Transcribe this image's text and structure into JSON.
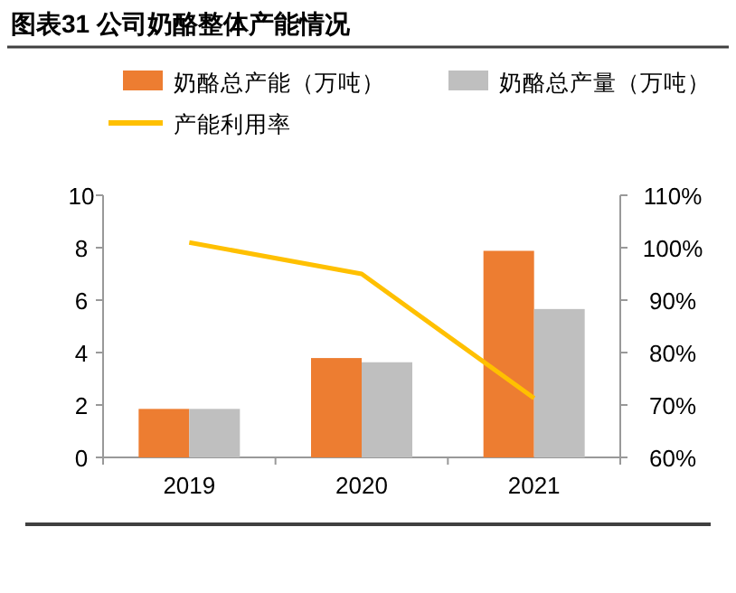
{
  "chart_data": {
    "type": "bar",
    "title": "图表31 公司奶酪整体产能情况",
    "categories": [
      "2019",
      "2020",
      "2021"
    ],
    "series": [
      {
        "name": "奶酪总产能（万吨）",
        "color": "#ed7d31",
        "values": [
          1.85,
          3.79,
          7.88
        ]
      },
      {
        "name": "奶酪总产量（万吨）",
        "color": "#bfbfbf",
        "values": [
          1.85,
          3.63,
          5.66
        ]
      },
      {
        "name": "产能利用率",
        "type": "line",
        "axis": "y2",
        "color": "#ffc000",
        "values": [
          101,
          95,
          71.3
        ]
      }
    ],
    "ylim": [
      0,
      10
    ],
    "yticks": [
      0,
      2,
      4,
      6,
      8,
      10
    ],
    "y2lim": [
      60,
      110
    ],
    "y2ticks": [
      {
        "value": 60,
        "label": "60%"
      },
      {
        "value": 70,
        "label": "70%"
      },
      {
        "value": 80,
        "label": "80%"
      },
      {
        "value": 90,
        "label": "90%"
      },
      {
        "value": 100,
        "label": "100%"
      },
      {
        "value": 110,
        "label": "110%"
      }
    ],
    "legend": "top",
    "grid": false
  }
}
